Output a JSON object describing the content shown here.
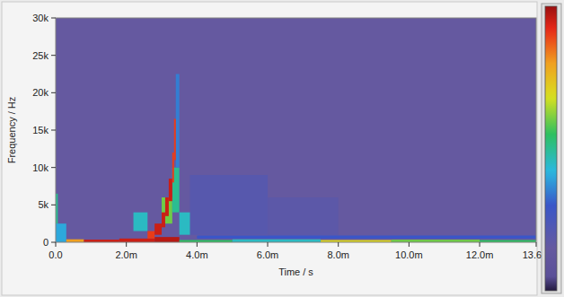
{
  "chart_data": {
    "type": "heatmap",
    "x_label": "Time / s",
    "y_label": "Frequency / Hz",
    "xlim": [
      0,
      0.0136
    ],
    "ylim": [
      0,
      30000
    ],
    "xticks": [
      {
        "value": 0,
        "label": "0.0"
      },
      {
        "value": 0.002,
        "label": "2.0m"
      },
      {
        "value": 0.004,
        "label": "4.0m"
      },
      {
        "value": 0.006,
        "label": "6.0m"
      },
      {
        "value": 0.008,
        "label": "8.0m"
      },
      {
        "value": 0.01,
        "label": "10.0m"
      },
      {
        "value": 0.012,
        "label": "12.0m"
      },
      {
        "value": 0.0136,
        "label": "13.6m"
      }
    ],
    "yticks": [
      0,
      {
        "value": 5000,
        "label": "5k"
      },
      {
        "value": 10000,
        "label": "10k"
      },
      {
        "value": 15000,
        "label": "15k"
      },
      {
        "value": 20000,
        "label": "20k"
      },
      {
        "value": 25000,
        "label": "25k"
      },
      {
        "value": 30000,
        "label": "30k"
      }
    ],
    "background_value": 0.15,
    "colorbar_range": [
      0,
      1
    ],
    "cells": [
      {
        "t0": 0.0038,
        "t1": 0.006,
        "f0": 1000,
        "f1": 9000,
        "value": 0.2
      },
      {
        "t0": 0.006,
        "t1": 0.008,
        "f0": 500,
        "f1": 6000,
        "value": 0.18
      },
      {
        "t0": 0.004,
        "t1": 0.0136,
        "f0": 500,
        "f1": 900,
        "value": 0.3
      },
      {
        "t0": 0,
        "t1": 6e-05,
        "f0": 0,
        "f1": 6500,
        "value": 0.5
      },
      {
        "t0": 0,
        "t1": 0.0003,
        "f0": 0,
        "f1": 2500,
        "value": 0.4
      },
      {
        "t0": 0.0003,
        "t1": 0.0008,
        "f0": 0,
        "f1": 400,
        "value": 0.8
      },
      {
        "t0": 0.0008,
        "t1": 0.0018,
        "f0": 0,
        "f1": 350,
        "value": 0.95
      },
      {
        "t0": 0.0018,
        "t1": 0.0028,
        "f0": 0,
        "f1": 500,
        "value": 0.95
      },
      {
        "t0": 0.0028,
        "t1": 0.0035,
        "f0": 0,
        "f1": 700,
        "value": 0.97
      },
      {
        "t0": 0.0035,
        "t1": 0.005,
        "f0": 0,
        "f1": 300,
        "value": 0.55
      },
      {
        "t0": 0.005,
        "t1": 0.0075,
        "f0": 0,
        "f1": 400,
        "value": 0.45
      },
      {
        "t0": 0.0075,
        "t1": 0.0095,
        "f0": 0,
        "f1": 300,
        "value": 0.7
      },
      {
        "t0": 0.0095,
        "t1": 0.012,
        "f0": 0,
        "f1": 350,
        "value": 0.6
      },
      {
        "t0": 0.012,
        "t1": 0.0136,
        "f0": 0,
        "f1": 300,
        "value": 0.55
      },
      {
        "t0": 0.0022,
        "t1": 0.0026,
        "f0": 1500,
        "f1": 4000,
        "value": 0.45
      },
      {
        "t0": 0.003,
        "t1": 0.0033,
        "f0": 2500,
        "f1": 6000,
        "value": 0.6
      },
      {
        "t0": 0.0033,
        "t1": 0.0035,
        "f0": 4000,
        "f1": 10000,
        "value": 0.5
      },
      {
        "t0": 0.0034,
        "t1": 0.0035,
        "f0": 10000,
        "f1": 22500,
        "value": 0.35
      },
      {
        "t0": 0.0035,
        "t1": 0.0038,
        "f0": 1000,
        "f1": 4000,
        "value": 0.45
      },
      {
        "t0": 0.0026,
        "t1": 0.0028,
        "f0": 500,
        "f1": 1500,
        "value": 0.9
      },
      {
        "t0": 0.0028,
        "t1": 0.003,
        "f0": 1000,
        "f1": 2500,
        "value": 0.95
      },
      {
        "t0": 0.003,
        "t1": 0.0031,
        "f0": 2000,
        "f1": 4000,
        "value": 0.95
      },
      {
        "t0": 0.0031,
        "t1": 0.0032,
        "f0": 3500,
        "f1": 6000,
        "value": 0.95
      },
      {
        "t0": 0.0032,
        "t1": 0.0033,
        "f0": 5500,
        "f1": 8500,
        "value": 0.95
      },
      {
        "t0": 0.0033,
        "t1": 0.00335,
        "f0": 8000,
        "f1": 12000,
        "value": 0.9
      },
      {
        "t0": 0.00335,
        "t1": 0.0034,
        "f0": 11000,
        "f1": 16500,
        "value": 0.9
      }
    ]
  }
}
